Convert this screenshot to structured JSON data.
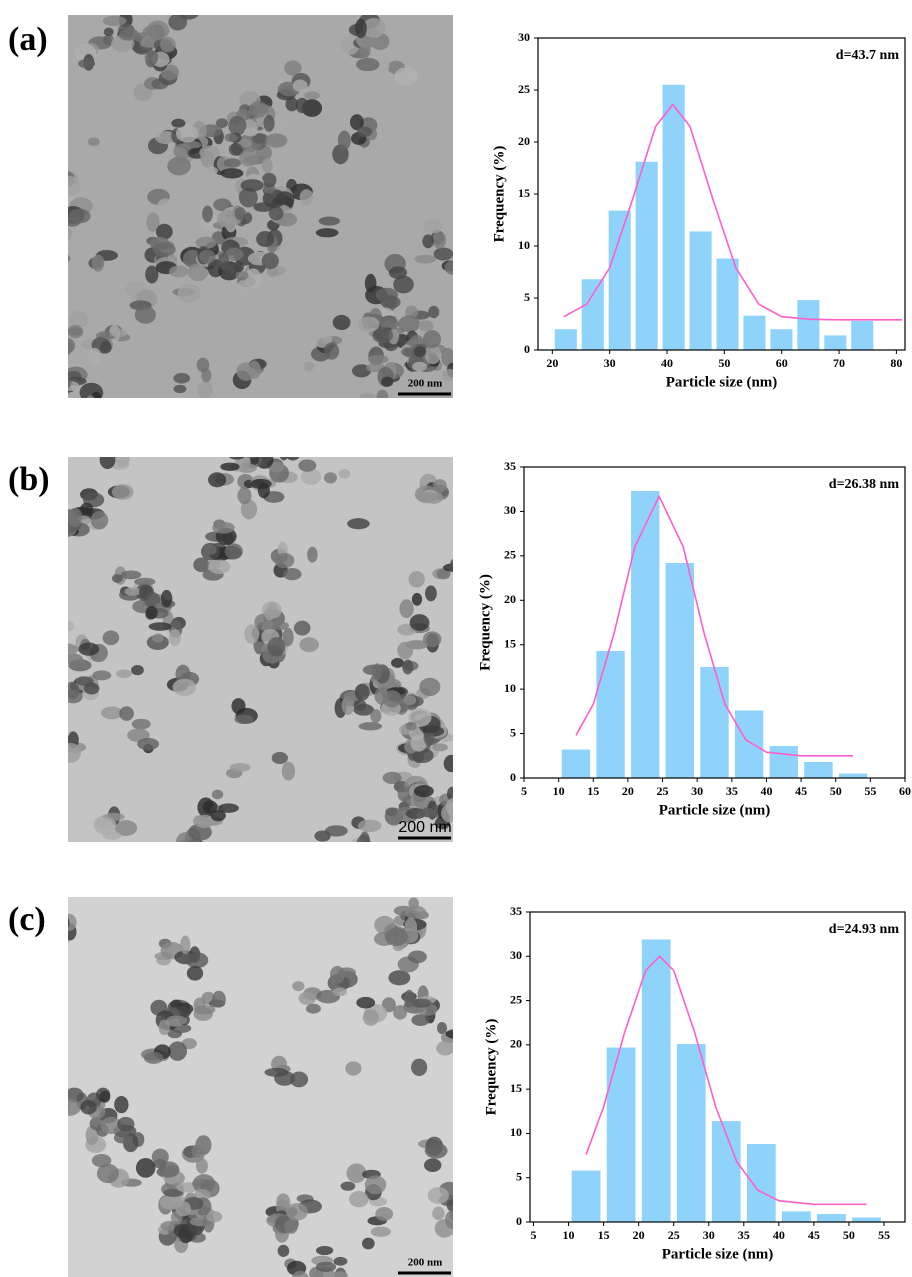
{
  "panels": [
    {
      "label": "(a)",
      "scale_bar": "200 nm"
    },
    {
      "label": "(b)",
      "scale_bar": "200 nm"
    },
    {
      "label": "(c)",
      "scale_bar": "200 nm"
    }
  ],
  "chart_data": [
    {
      "type": "histogram",
      "annotation": "d=43.7 nm",
      "xlabel": "Particle size (nm)",
      "ylabel": "Frequency (%)",
      "bins": [
        20,
        24.7,
        29.4,
        34.1,
        38.8,
        43.5,
        48.2,
        52.9,
        57.6,
        62.3,
        67,
        71.7,
        76.4
      ],
      "values": [
        2,
        6.8,
        13.4,
        18.1,
        25.5,
        11.4,
        8.8,
        3.3,
        2,
        4.8,
        1.4,
        2.8
      ],
      "color": "#8fd3fb",
      "fit": {
        "x": [
          22,
          26,
          30,
          34,
          38,
          41,
          44,
          48,
          52,
          56,
          60,
          65,
          70,
          75,
          81
        ],
        "values": [
          3.2,
          4.4,
          7.9,
          14.5,
          21.5,
          23.6,
          21.5,
          14.5,
          7.9,
          4.4,
          3.2,
          2.95,
          2.9,
          2.9,
          2.9
        ],
        "color": "#ff5fc8"
      },
      "xlim": [
        17.5,
        81.5
      ],
      "ylim": [
        0,
        30
      ],
      "xticks": [
        20,
        30,
        40,
        50,
        60,
        70,
        80
      ],
      "yticks": [
        0,
        5,
        10,
        15,
        20,
        25,
        30
      ]
    },
    {
      "type": "histogram",
      "annotation": "d=26.38 nm",
      "xlabel": "Particle size (nm)",
      "ylabel": "Frequency (%)",
      "bins": [
        10,
        15,
        20,
        25,
        30,
        35,
        40,
        45,
        50,
        55
      ],
      "values": [
        3.2,
        14.3,
        32.3,
        24.2,
        12.5,
        7.6,
        3.6,
        1.8,
        0.5
      ],
      "color": "#8fd3fb",
      "fit": {
        "x": [
          12.5,
          15,
          18,
          21,
          24.5,
          28,
          31,
          34,
          37,
          40,
          45,
          52.5
        ],
        "values": [
          4.8,
          8.3,
          16.3,
          26,
          31.7,
          26,
          16.3,
          8.3,
          4.3,
          2.9,
          2.5,
          2.5
        ],
        "color": "#ff5fc8"
      },
      "xlim": [
        5,
        60
      ],
      "ylim": [
        0,
        35
      ],
      "xticks": [
        5,
        10,
        15,
        20,
        25,
        30,
        35,
        40,
        45,
        50,
        55,
        60
      ],
      "yticks": [
        0,
        5,
        10,
        15,
        20,
        25,
        30,
        35
      ]
    },
    {
      "type": "histogram",
      "annotation": "d=24.93 nm",
      "xlabel": "Particle size (nm)",
      "ylabel": "Frequency (%)",
      "bins": [
        10,
        15,
        20,
        25,
        30,
        35,
        40,
        45,
        50,
        55
      ],
      "values": [
        5.8,
        19.7,
        31.9,
        20.1,
        11.4,
        8.8,
        1.2,
        0.9,
        0.5
      ],
      "color": "#8fd3fb",
      "fit": {
        "x": [
          12.5,
          15,
          18,
          21,
          23,
          25,
          28,
          31,
          34,
          37,
          40,
          45,
          52.5
        ],
        "values": [
          7.6,
          13,
          21.4,
          28.4,
          30,
          28.4,
          21.4,
          13,
          6.8,
          3.6,
          2.4,
          2,
          2
        ],
        "color": "#ff5fc8"
      },
      "xlim": [
        4.5,
        58
      ],
      "ylim": [
        0,
        35
      ],
      "xticks": [
        5,
        10,
        15,
        20,
        25,
        30,
        35,
        40,
        45,
        50,
        55
      ],
      "yticks": [
        0,
        5,
        10,
        15,
        20,
        25,
        30,
        35
      ]
    }
  ]
}
